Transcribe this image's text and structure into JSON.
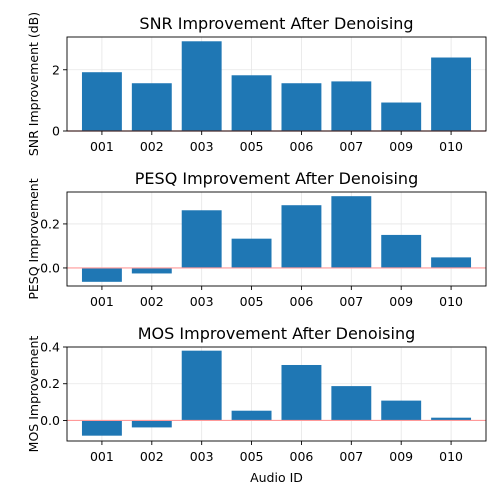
{
  "chart_data": [
    {
      "type": "bar",
      "title": "SNR Improvement After Denoising",
      "xlabel": "",
      "ylabel": "SNR Improvement (dB)",
      "categories": [
        "001",
        "002",
        "003",
        "005",
        "006",
        "007",
        "009",
        "010"
      ],
      "values": [
        1.92,
        1.56,
        2.93,
        1.82,
        1.56,
        1.62,
        0.93,
        2.4
      ],
      "ylim": [
        0,
        3.07
      ],
      "yticks": [
        0,
        2
      ],
      "ytick_labels": [
        "0",
        "2"
      ],
      "grid": true,
      "bar_color": "#1f77b4",
      "zero_line_color": "#ff9999"
    },
    {
      "type": "bar",
      "title": "PESQ Improvement After Denoising",
      "xlabel": "",
      "ylabel": "PESQ Improvement",
      "categories": [
        "001",
        "002",
        "003",
        "005",
        "006",
        "007",
        "009",
        "010"
      ],
      "values": [
        -0.063,
        -0.025,
        0.262,
        0.133,
        0.285,
        0.326,
        0.15,
        0.048
      ],
      "ylim": [
        -0.082,
        0.345
      ],
      "yticks": [
        0,
        0.2
      ],
      "ytick_labels": [
        "0.0",
        "0.2"
      ],
      "grid": true,
      "bar_color": "#1f77b4",
      "zero_line_color": "#ff9999"
    },
    {
      "type": "bar",
      "title": "MOS Improvement After Denoising",
      "xlabel": "Audio ID",
      "ylabel": "MOS Improvement",
      "categories": [
        "001",
        "002",
        "003",
        "005",
        "006",
        "007",
        "009",
        "010"
      ],
      "values": [
        -0.083,
        -0.038,
        0.38,
        0.053,
        0.302,
        0.187,
        0.108,
        0.015
      ],
      "ylim": [
        -0.112,
        0.4
      ],
      "yticks": [
        0,
        0.2,
        0.4
      ],
      "ytick_labels": [
        "0.0",
        "0.2",
        "0.4"
      ],
      "grid": true,
      "bar_color": "#1f77b4",
      "zero_line_color": "#ff9999"
    }
  ]
}
